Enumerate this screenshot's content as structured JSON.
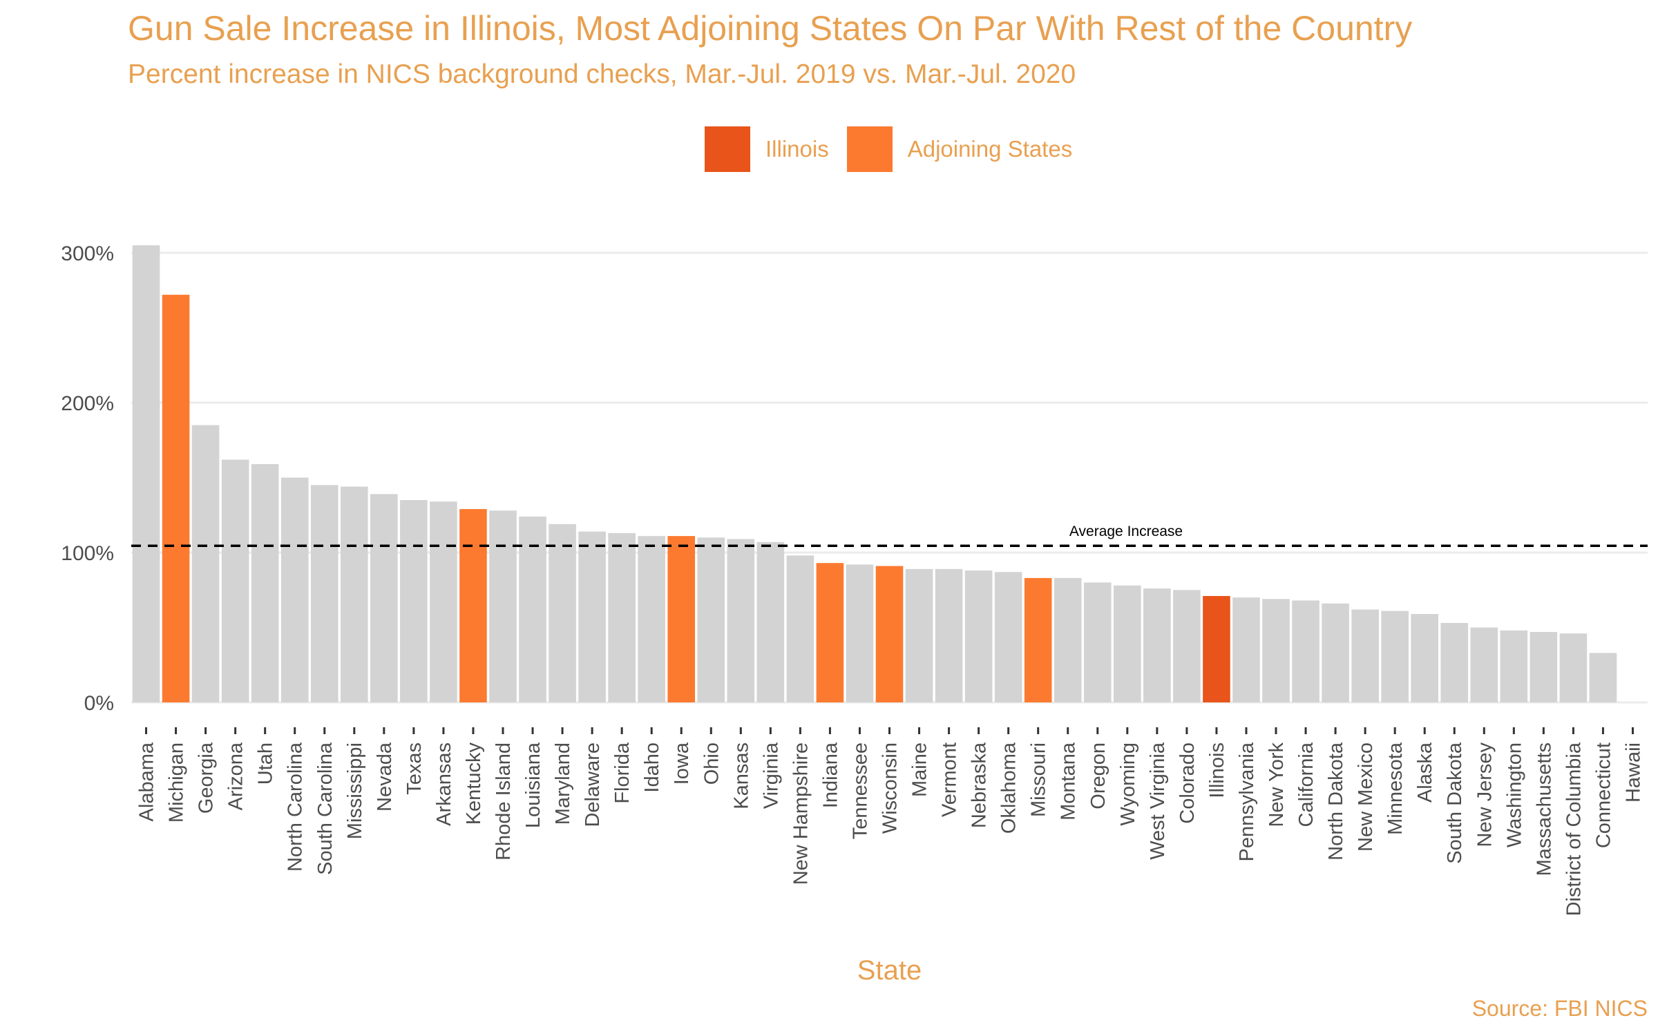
{
  "title": "Gun Sale Increase in Illinois, Most Adjoining States On Par With Rest of the Country",
  "subtitle": "Percent increase in NICS background checks, Mar.-Jul. 2019 vs. Mar.-Jul. 2020",
  "source": "Source: FBI NICS",
  "legend": [
    {
      "label": "Illinois",
      "color": "#E8541A"
    },
    {
      "label": "Adjoining States",
      "color": "#FC7A30"
    }
  ],
  "colors": {
    "default_bar": "#D3D3D3",
    "grid": "#EBEBEB"
  },
  "chart_data": {
    "type": "bar",
    "xlabel": "State",
    "ylabel": "",
    "ylim": [
      0,
      310
    ],
    "yticks": [
      0,
      100,
      200,
      300
    ],
    "ytick_labels": [
      "0%",
      "100%",
      "200%",
      "300%"
    ],
    "legend_position": "top",
    "grid": true,
    "reference_line": {
      "label": "Average Increase",
      "value": 104.5,
      "style": "dashed"
    },
    "categories": [
      "Alabama",
      "Michigan",
      "Georgia",
      "Arizona",
      "Utah",
      "North Carolina",
      "South Carolina",
      "Mississippi",
      "Nevada",
      "Texas",
      "Arkansas",
      "Kentucky",
      "Rhode Island",
      "Louisiana",
      "Maryland",
      "Delaware",
      "Florida",
      "Idaho",
      "Iowa",
      "Ohio",
      "Kansas",
      "Virginia",
      "New Hampshire",
      "Indiana",
      "Tennessee",
      "Wisconsin",
      "Maine",
      "Vermont",
      "Nebraska",
      "Oklahoma",
      "Missouri",
      "Montana",
      "Oregon",
      "Wyoming",
      "West Virginia",
      "Colorado",
      "Illinois",
      "Pennsylvania",
      "New York",
      "California",
      "North Dakota",
      "New Mexico",
      "Minnesota",
      "Alaska",
      "South Dakota",
      "New Jersey",
      "Washington",
      "Massachusetts",
      "District of Columbia",
      "Connecticut",
      "Hawaii"
    ],
    "values": [
      305,
      272,
      185,
      162,
      159,
      150,
      145,
      144,
      139,
      135,
      134,
      129,
      128,
      124,
      119,
      114,
      113,
      111,
      111,
      110,
      109,
      107,
      98,
      93,
      92,
      91,
      89,
      89,
      88,
      87,
      83,
      83,
      80,
      78,
      76,
      75,
      71,
      70,
      69,
      68,
      66,
      62,
      61,
      59,
      53,
      50,
      48,
      47,
      46,
      33,
      0
    ],
    "groups": [
      "Other",
      "Adjoining States",
      "Other",
      "Other",
      "Other",
      "Other",
      "Other",
      "Other",
      "Other",
      "Other",
      "Other",
      "Adjoining States",
      "Other",
      "Other",
      "Other",
      "Other",
      "Other",
      "Other",
      "Adjoining States",
      "Other",
      "Other",
      "Other",
      "Other",
      "Adjoining States",
      "Other",
      "Adjoining States",
      "Other",
      "Other",
      "Other",
      "Other",
      "Adjoining States",
      "Other",
      "Other",
      "Other",
      "Other",
      "Other",
      "Illinois",
      "Other",
      "Other",
      "Other",
      "Other",
      "Other",
      "Other",
      "Other",
      "Other",
      "Other",
      "Other",
      "Other",
      "Other",
      "Other",
      "Other"
    ]
  }
}
